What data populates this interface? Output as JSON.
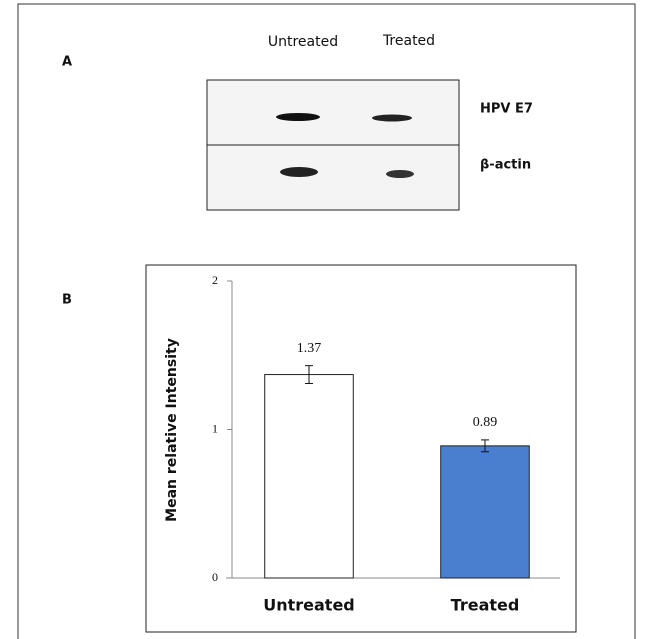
{
  "panel_labels": [
    "A",
    "B"
  ],
  "blot": {
    "lanes": [
      "Untreated",
      "Treated"
    ],
    "rows": [
      "HPV E7",
      "β-actin"
    ]
  },
  "chart_data": {
    "type": "bar",
    "ylabel": "Mean relative Intensity",
    "categories": [
      "Untreated",
      "Treated"
    ],
    "values": [
      1.37,
      0.89
    ],
    "errors": [
      0.06,
      0.04
    ],
    "colors": [
      "#ffffff",
      "#4a7fd0"
    ],
    "ylim": [
      0,
      2
    ],
    "yticks": [
      0,
      1,
      2
    ],
    "grid": false
  }
}
